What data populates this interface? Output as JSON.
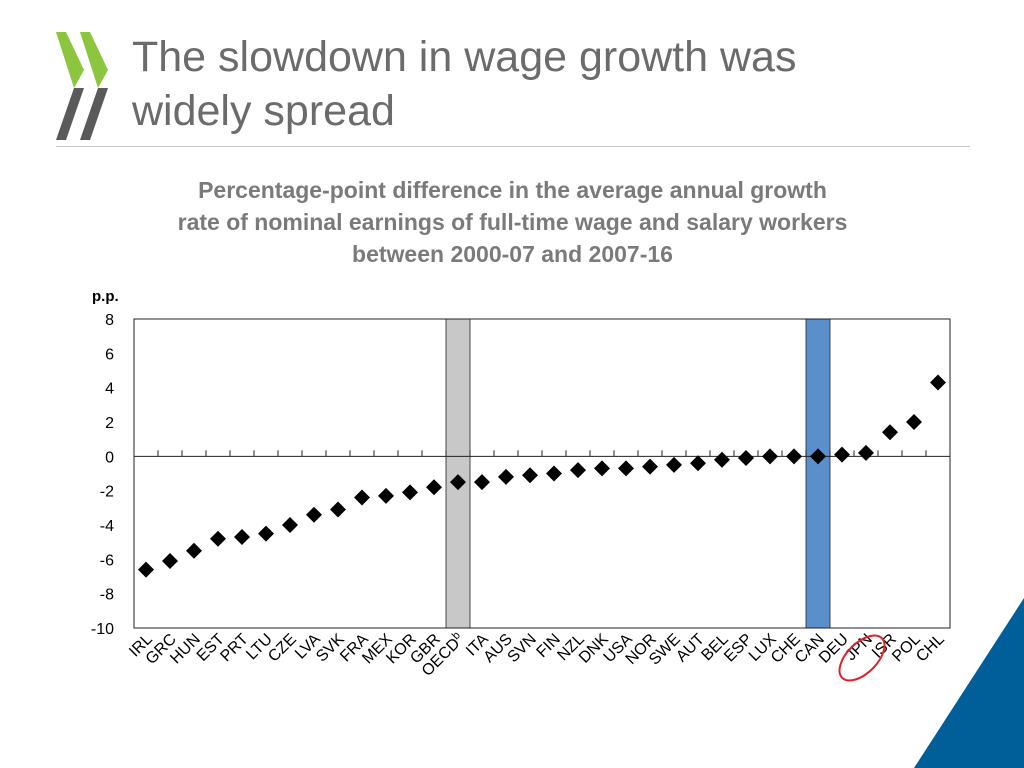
{
  "slide": {
    "title_line1": "The slowdown in wage growth was",
    "title_line2": "widely spread"
  },
  "logo": {
    "icon": "double-chevron-logo",
    "colors": [
      "#8cc63f",
      "#5a5a5a"
    ]
  },
  "chart_data": {
    "type": "scatter",
    "title_lines": [
      "Percentage-point difference in the average annual growth",
      "rate of nominal earnings of full-time wage and salary workers",
      "between 2000-07 and 2007-16"
    ],
    "ylabel": "p.p.",
    "ylim": [
      -10,
      8
    ],
    "yticks": [
      "8",
      "6",
      "4",
      "2",
      "0",
      "-2",
      "-4",
      "-6",
      "-8",
      "-10"
    ],
    "categories": [
      "IRL",
      "GRC",
      "HUN",
      "EST",
      "PRT",
      "LTU",
      "CZE",
      "LVA",
      "SVK",
      "FRA",
      "MEX",
      "KOR",
      "GBR",
      "OECD",
      "ITA",
      "AUS",
      "SVN",
      "FIN",
      "NZL",
      "DNK",
      "USA",
      "NOR",
      "SWE",
      "AUT",
      "BEL",
      "ESP",
      "LUX",
      "CHE",
      "CAN",
      "DEU",
      "JPN",
      "ISR",
      "POL",
      "CHL"
    ],
    "oecd_superscript": "b",
    "values": [
      -6.6,
      -6.1,
      -5.5,
      -4.8,
      -4.7,
      -4.5,
      -4.0,
      -3.4,
      -3.1,
      -2.4,
      -2.3,
      -2.1,
      -1.8,
      -1.5,
      -1.5,
      -1.2,
      -1.1,
      -1.0,
      -0.8,
      -0.7,
      -0.7,
      -0.6,
      -0.5,
      -0.4,
      -0.2,
      -0.1,
      0.0,
      0.0,
      0.0,
      0.1,
      0.2,
      1.4,
      2.0,
      4.3
    ],
    "highlighted_bars": [
      {
        "category": "OECD",
        "color": "#c8c8c8"
      },
      {
        "category": "CAN",
        "color": "#5b8fcb"
      }
    ],
    "circled_label": {
      "category": "JPN",
      "color": "#e0202a"
    },
    "marker": "diamond",
    "marker_color": "#000000",
    "grid": false
  },
  "decor": {
    "corner_color": "#005f99"
  }
}
